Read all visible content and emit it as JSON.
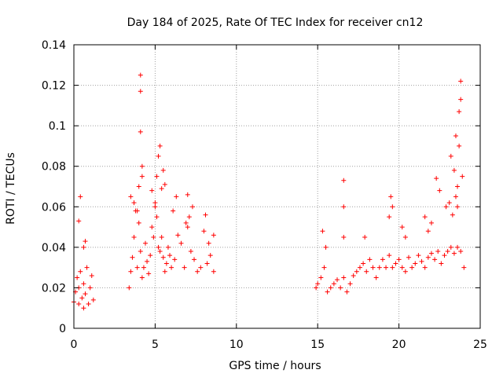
{
  "chart_data": {
    "type": "scatter",
    "title": "Day 184 of 2025, Rate Of TEC Index for receiver cn12",
    "xlabel": "GPS time / hours",
    "ylabel": "ROTI / TECUs",
    "xlim": [
      0,
      25
    ],
    "ylim": [
      0,
      0.14
    ],
    "xticks": [
      0,
      5,
      10,
      15,
      20,
      25
    ],
    "xtick_labels": [
      "0",
      "5",
      "10",
      "15",
      "20",
      "25"
    ],
    "yticks": [
      0,
      0.02,
      0.04,
      0.06,
      0.08,
      0.1,
      0.12,
      0.14
    ],
    "ytick_labels": [
      "0",
      "0.02",
      "0.04",
      "0.06",
      "0.08",
      "0.1",
      "0.12",
      "0.14"
    ],
    "grid": true,
    "marker": "+",
    "color": "#ff0000",
    "series": [
      {
        "name": "ROTI",
        "x": [
          0.0,
          0.1,
          0.2,
          0.3,
          0.3,
          0.4,
          0.5,
          0.6,
          0.6,
          0.7,
          0.8,
          0.9,
          1.0,
          1.1,
          1.2,
          0.4,
          0.3,
          0.7,
          0.6,
          3.4,
          3.5,
          3.6,
          3.7,
          3.8,
          3.9,
          4.0,
          4.1,
          4.2,
          4.3,
          4.4,
          4.5,
          4.6,
          4.7,
          4.8,
          4.9,
          5.0,
          5.1,
          5.2,
          5.3,
          5.4,
          5.5,
          5.6,
          5.7,
          5.8,
          5.9,
          6.0,
          6.2,
          6.4,
          6.6,
          6.8,
          7.0,
          7.2,
          7.4,
          7.6,
          7.8,
          8.0,
          8.2,
          8.4,
          8.6,
          4.1,
          4.1,
          4.1,
          4.2,
          4.2,
          3.5,
          3.7,
          3.9,
          4.0,
          5.1,
          5.3,
          5.2,
          5.5,
          5.4,
          5.6,
          5.0,
          4.8,
          6.1,
          6.3,
          6.9,
          7.0,
          7.1,
          7.3,
          8.1,
          8.3,
          8.6,
          14.9,
          15.0,
          15.2,
          15.4,
          15.6,
          15.8,
          16.0,
          16.2,
          16.4,
          16.6,
          16.8,
          17.0,
          17.2,
          17.4,
          17.6,
          17.8,
          18.0,
          18.2,
          18.4,
          18.6,
          18.8,
          19.0,
          19.2,
          19.4,
          19.6,
          19.8,
          20.0,
          20.2,
          20.4,
          20.6,
          20.8,
          21.0,
          21.2,
          21.4,
          21.6,
          21.8,
          22.0,
          22.2,
          22.4,
          22.6,
          22.8,
          23.0,
          23.2,
          23.4,
          23.6,
          23.8,
          24.0,
          16.6,
          16.6,
          16.6,
          15.3,
          15.5,
          17.9,
          19.4,
          19.5,
          19.6,
          20.4,
          20.2,
          21.6,
          21.8,
          22.0,
          22.3,
          22.5,
          22.9,
          23.1,
          23.2,
          23.4,
          23.5,
          23.6,
          23.7,
          23.7,
          23.8,
          23.8,
          23.9,
          23.6,
          23.5,
          23.3
        ],
        "y": [
          0.013,
          0.018,
          0.025,
          0.012,
          0.02,
          0.028,
          0.015,
          0.022,
          0.01,
          0.017,
          0.03,
          0.012,
          0.02,
          0.026,
          0.014,
          0.065,
          0.053,
          0.043,
          0.04,
          0.02,
          0.028,
          0.035,
          0.045,
          0.058,
          0.03,
          0.052,
          0.038,
          0.025,
          0.03,
          0.042,
          0.033,
          0.027,
          0.036,
          0.05,
          0.045,
          0.06,
          0.055,
          0.04,
          0.038,
          0.045,
          0.035,
          0.028,
          0.032,
          0.04,
          0.036,
          0.03,
          0.034,
          0.046,
          0.042,
          0.03,
          0.05,
          0.038,
          0.034,
          0.028,
          0.03,
          0.048,
          0.032,
          0.036,
          0.028,
          0.125,
          0.117,
          0.097,
          0.08,
          0.075,
          0.065,
          0.062,
          0.058,
          0.07,
          0.075,
          0.09,
          0.085,
          0.078,
          0.069,
          0.071,
          0.062,
          0.068,
          0.058,
          0.065,
          0.052,
          0.066,
          0.055,
          0.06,
          0.056,
          0.042,
          0.046,
          0.02,
          0.022,
          0.025,
          0.03,
          0.018,
          0.02,
          0.022,
          0.024,
          0.02,
          0.025,
          0.018,
          0.022,
          0.026,
          0.028,
          0.03,
          0.032,
          0.028,
          0.034,
          0.03,
          0.025,
          0.03,
          0.034,
          0.03,
          0.036,
          0.03,
          0.032,
          0.034,
          0.03,
          0.028,
          0.035,
          0.03,
          0.032,
          0.036,
          0.033,
          0.03,
          0.035,
          0.037,
          0.034,
          0.038,
          0.032,
          0.036,
          0.038,
          0.04,
          0.037,
          0.04,
          0.038,
          0.03,
          0.073,
          0.06,
          0.045,
          0.048,
          0.04,
          0.045,
          0.055,
          0.065,
          0.06,
          0.045,
          0.05,
          0.055,
          0.048,
          0.052,
          0.074,
          0.068,
          0.06,
          0.062,
          0.085,
          0.078,
          0.095,
          0.06,
          0.09,
          0.107,
          0.113,
          0.122,
          0.075,
          0.07,
          0.065,
          0.056
        ]
      }
    ]
  }
}
